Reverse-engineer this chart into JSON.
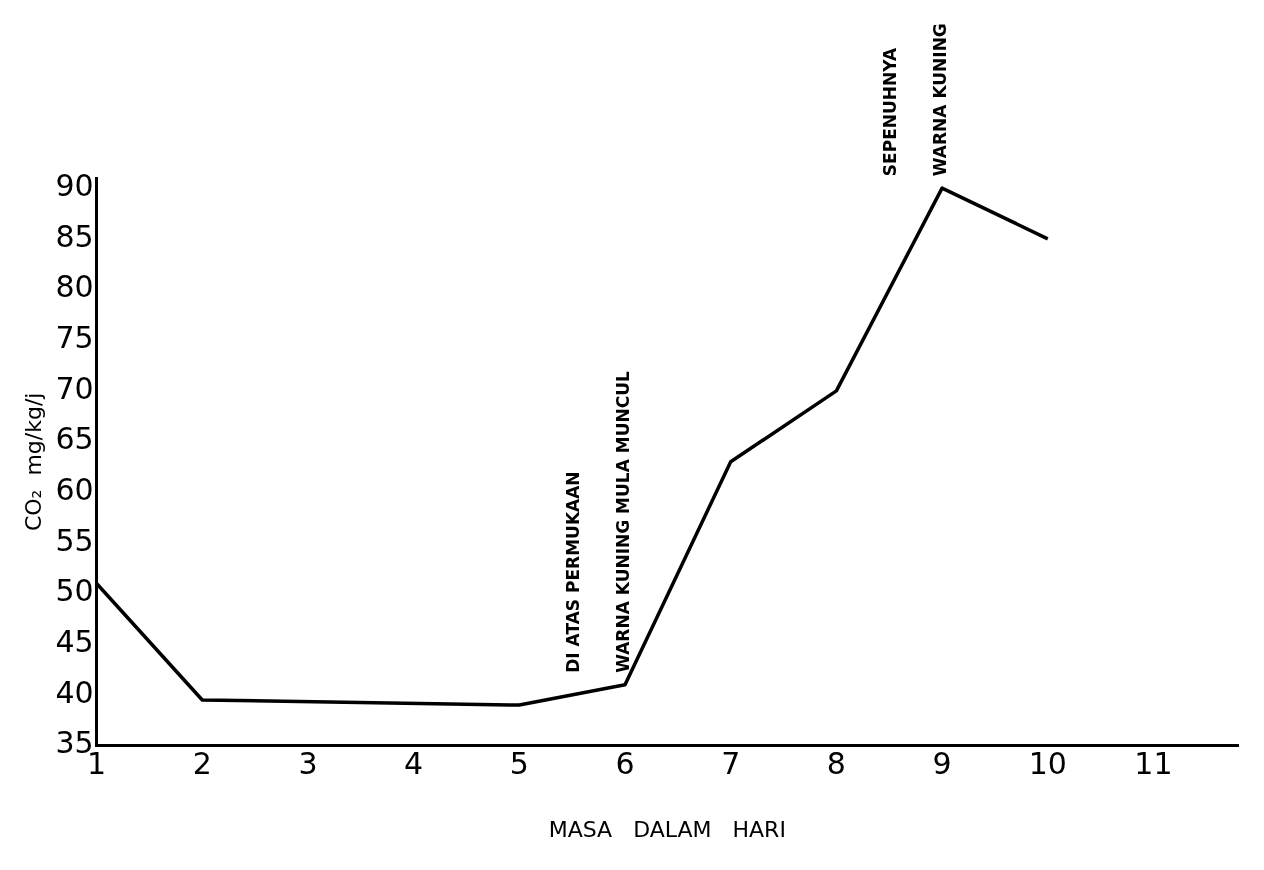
{
  "chart_data": {
    "type": "line",
    "xlabel": "MASA   DALAM   HARI",
    "ylabel": "CO₂  mg/kg/j",
    "x": [
      1,
      2,
      5,
      6,
      7,
      8,
      9,
      10
    ],
    "series": [
      {
        "color": "#000000",
        "values": [
          51,
          39.5,
          39,
          41,
          63,
          70,
          90,
          85
        ]
      }
    ],
    "xlim": [
      1,
      11.8
    ],
    "xticks": [
      1,
      2,
      3,
      4,
      5,
      6,
      7,
      8,
      9,
      10,
      11
    ],
    "ylim": [
      35,
      91
    ],
    "yticks": [
      35,
      40,
      45,
      50,
      55,
      60,
      65,
      70,
      75,
      80,
      85,
      90
    ],
    "grid": false,
    "legend": false,
    "marker": "none",
    "line_style": "solid",
    "annotations": [
      {
        "text": "WARNA KUNING MULA MUNCUL",
        "x": 6,
        "y": 41
      },
      "DI ATAS PERMUKAAN",
      {
        "text": "WARNA KUNING",
        "x": 9,
        "y": 90
      },
      "SEPENUHNYA"
    ]
  }
}
